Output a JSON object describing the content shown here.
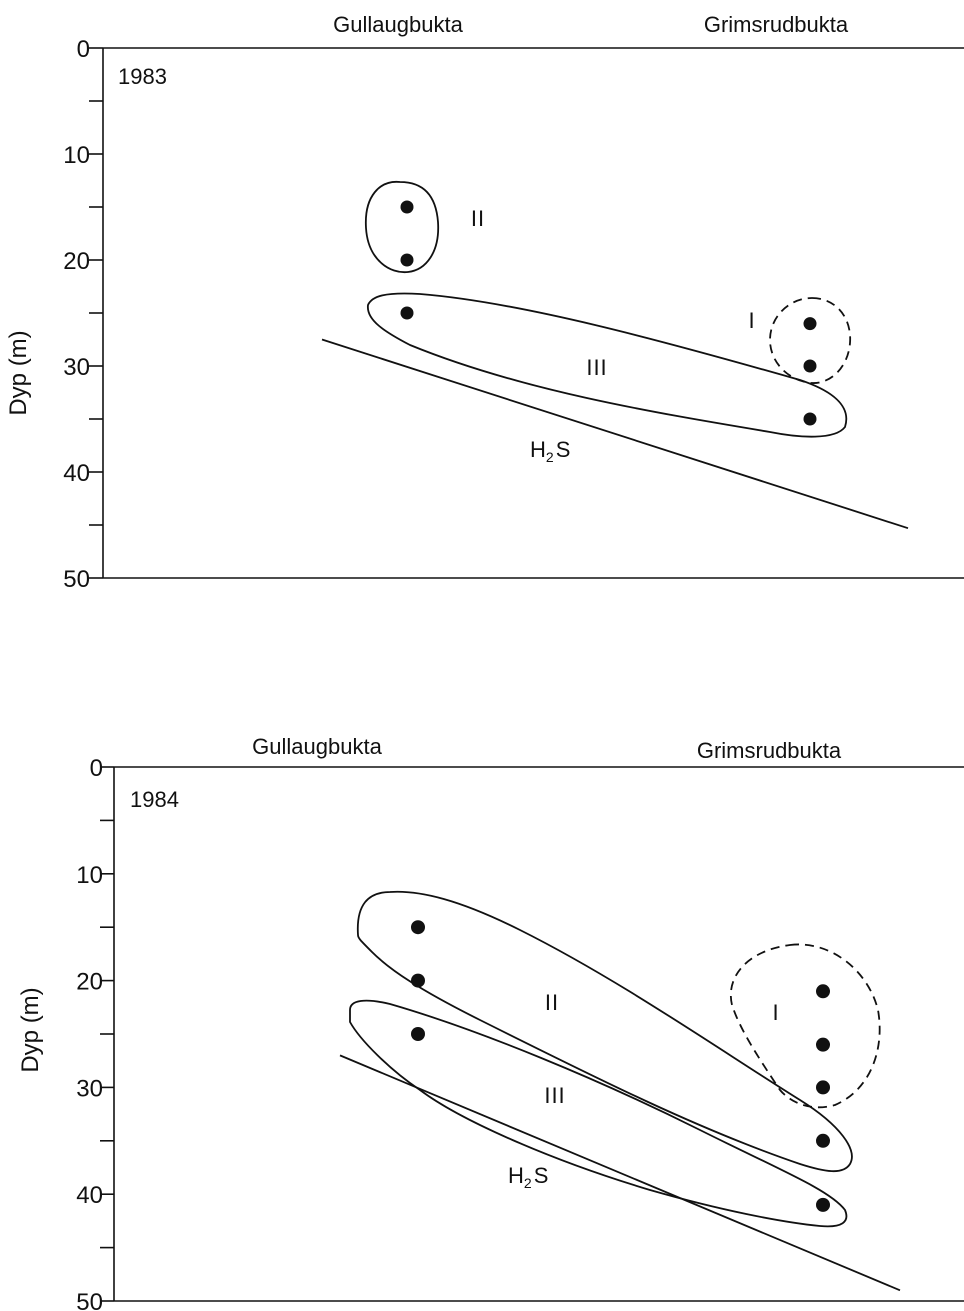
{
  "chart_data": [
    {
      "type": "scatter",
      "title": "1983",
      "xlabel_left": "Gullaugbukta",
      "xlabel_right": "Grimsrudbukta",
      "ylabel": "Dyp (m)",
      "ylim": [
        0,
        50
      ],
      "yticks": [
        0,
        10,
        20,
        30,
        40,
        50
      ],
      "stations": [
        {
          "name": "Gullaugbukta",
          "depths": [
            15,
            20,
            25
          ]
        },
        {
          "name": "Grimsrudbukta",
          "depths": [
            26,
            30,
            35
          ]
        }
      ],
      "groups": [
        {
          "label": "I",
          "style": "dashed"
        },
        {
          "label": "II",
          "style": "solid"
        },
        {
          "label": "III",
          "style": "solid"
        }
      ],
      "boundary": {
        "label": "H",
        "sub": "2",
        "label2": "S",
        "left_depth": 27.5,
        "right_depth": 45.3
      }
    },
    {
      "type": "scatter",
      "title": "1984",
      "xlabel_left": "Gullaugbukta",
      "xlabel_right": "Grimsrudbukta",
      "ylabel": "Dyp (m)",
      "ylim": [
        0,
        50
      ],
      "yticks": [
        0,
        10,
        20,
        30,
        40,
        50
      ],
      "stations": [
        {
          "name": "Gullaugbukta",
          "depths": [
            15,
            20,
            25
          ]
        },
        {
          "name": "Grimsrudbukta",
          "depths": [
            21,
            26,
            30,
            35,
            41
          ]
        }
      ],
      "groups": [
        {
          "label": "I",
          "style": "dashed"
        },
        {
          "label": "II",
          "style": "solid"
        },
        {
          "label": "III",
          "style": "solid"
        }
      ],
      "boundary": {
        "label": "H",
        "sub": "2",
        "label2": "S",
        "left_depth": 27,
        "right_depth": 49
      }
    }
  ]
}
